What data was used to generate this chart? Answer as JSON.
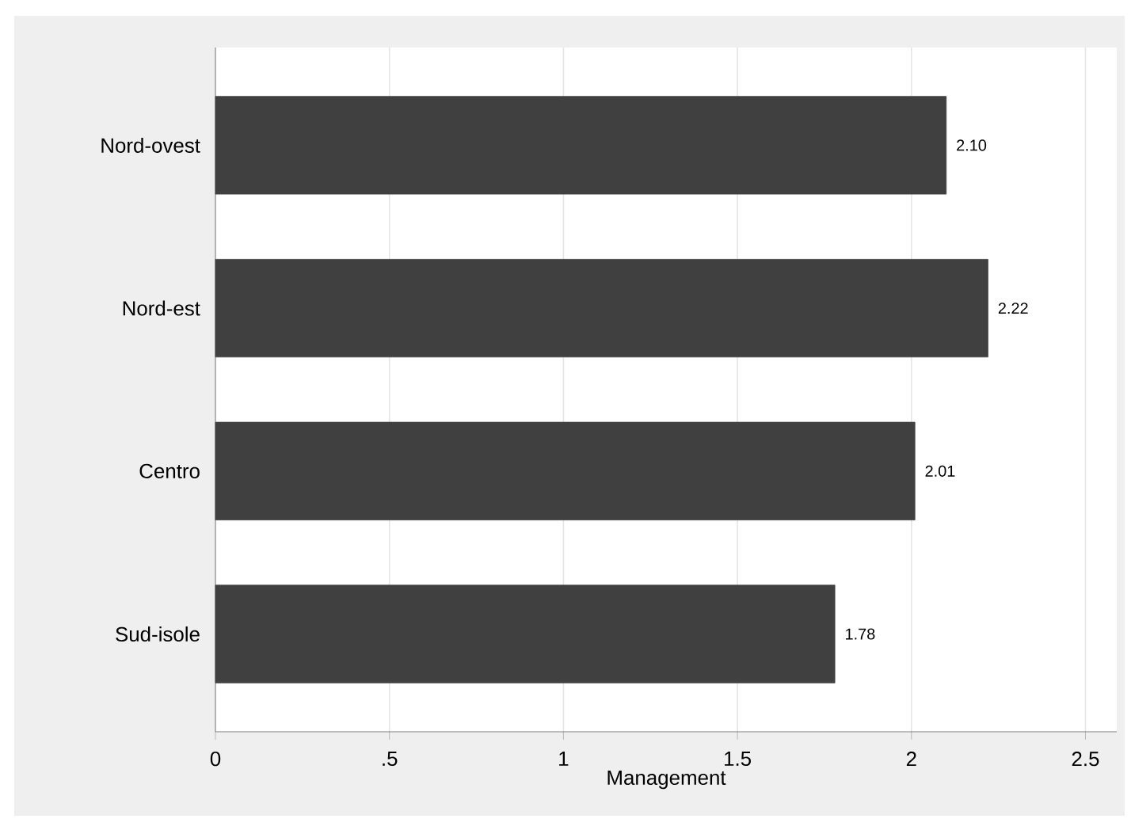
{
  "chart_data": {
    "type": "bar",
    "orientation": "horizontal",
    "xlabel": "Management",
    "categories": [
      "Nord-ovest",
      "Nord-est",
      "Centro",
      "Sud-isole"
    ],
    "values": [
      2.1,
      2.22,
      2.01,
      1.78
    ],
    "value_labels": [
      "2.10",
      "2.22",
      "2.01",
      "1.78"
    ],
    "color": "#404040",
    "xlim": [
      0,
      2.59
    ],
    "xticks": [
      0,
      {
        "value": 0.5,
        "label": ".5"
      },
      1,
      1.5,
      2,
      2.5
    ],
    "grid": "x"
  }
}
